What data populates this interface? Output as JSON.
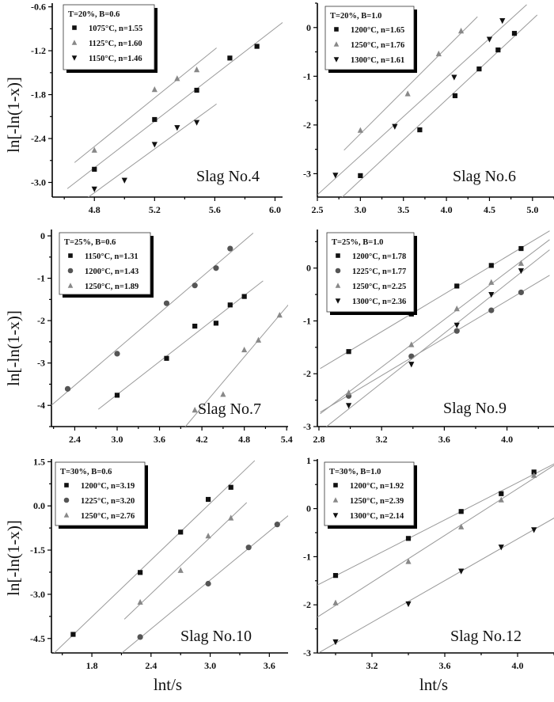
{
  "chart_data": [
    {
      "type": "scatter",
      "title": "Slag No.4",
      "legend_title": "T=20%,  B=0.6",
      "ylabel": "ln[-ln(1-x)]",
      "xlabel": "",
      "xlim": [
        4.52,
        6.05
      ],
      "ylim": [
        -3.2,
        -0.55
      ],
      "xticks": [
        "4.8",
        "5.2",
        "5.6",
        "6.0"
      ],
      "yticks": [
        "-0.6",
        "-1.2",
        "-1.8",
        "-2.4",
        "-3.0"
      ],
      "legend_position": "top-left",
      "series": [
        {
          "name": "1075°C, n=1.55",
          "marker": "square",
          "x": [
            4.8,
            5.2,
            5.48,
            5.7,
            5.88
          ],
          "y": [
            -2.82,
            -2.14,
            -1.74,
            -1.3,
            -1.14
          ]
        },
        {
          "name": "1125°C, n=1.60",
          "marker": "triangle",
          "x": [
            4.8,
            5.2,
            5.35,
            5.48
          ],
          "y": [
            -2.56,
            -1.73,
            -1.58,
            -1.46
          ]
        },
        {
          "name": "1150°C, n=1.46",
          "marker": "triangle-down",
          "x": [
            4.8,
            5.0,
            5.2,
            5.35,
            5.48
          ],
          "y": [
            -3.09,
            -2.97,
            -2.48,
            -2.25,
            -2.18
          ]
        }
      ]
    },
    {
      "type": "scatter",
      "title": "Slag No.6",
      "legend_title": "T=20%,  B=1.0",
      "ylabel": "",
      "xlabel": "",
      "xlim": [
        2.5,
        5.25
      ],
      "ylim": [
        -3.48,
        0.5
      ],
      "xticks": [
        "2.5",
        "3.0",
        "3.5",
        "4.0",
        "4.5",
        "5.0"
      ],
      "yticks": [
        "0",
        "-1",
        "-2",
        "-3"
      ],
      "legend_position": "top-left",
      "series": [
        {
          "name": "1200°C, n=1.65",
          "marker": "square",
          "x": [
            3.0,
            3.69,
            4.1,
            4.38,
            4.6,
            4.79
          ],
          "y": [
            -3.04,
            -2.1,
            -1.4,
            -0.85,
            -0.46,
            -0.12
          ]
        },
        {
          "name": "1250°C, n=1.76",
          "marker": "triangle",
          "x": [
            3.0,
            3.55,
            3.91,
            4.17
          ],
          "y": [
            -2.11,
            -1.36,
            -0.54,
            -0.07
          ]
        },
        {
          "name": "1300°C, n=1.61",
          "marker": "triangle-down",
          "x": [
            2.71,
            3.4,
            4.09,
            4.5,
            4.65
          ],
          "y": [
            -3.03,
            -2.03,
            -1.02,
            -0.24,
            0.14
          ]
        }
      ]
    },
    {
      "type": "scatter",
      "title": "Slag No.7",
      "legend_title": "T=25%, B=0.6",
      "ylabel": "ln[-ln(1-x)]",
      "xlabel": "",
      "xlim": [
        2.07,
        5.42
      ],
      "ylim": [
        -4.5,
        0.15
      ],
      "xticks": [
        "2.4",
        "3.0",
        "3.6",
        "4.2",
        "4.8",
        "5.4"
      ],
      "yticks": [
        "0",
        "-1",
        "-2",
        "-3",
        "-4"
      ],
      "legend_position": "top-left",
      "series": [
        {
          "name": "1150°C, n=1.31",
          "marker": "square",
          "x": [
            3.0,
            3.7,
            4.1,
            4.4,
            4.6,
            4.8
          ],
          "y": [
            -3.76,
            -2.89,
            -2.13,
            -2.06,
            -1.63,
            -1.43
          ]
        },
        {
          "name": "1200°C, n=1.43",
          "marker": "circle",
          "x": [
            2.3,
            3.0,
            3.7,
            4.1,
            4.4,
            4.6
          ],
          "y": [
            -3.61,
            -2.78,
            -1.59,
            -1.17,
            -0.76,
            -0.3
          ]
        },
        {
          "name": "1250°C, n=1.89",
          "marker": "triangle",
          "x": [
            4.1,
            4.5,
            4.8,
            5.0,
            5.3
          ],
          "y": [
            -4.11,
            -3.74,
            -2.69,
            -2.46,
            -1.87
          ]
        }
      ]
    },
    {
      "type": "scatter",
      "title": "Slag No.9",
      "legend_title": "T=25%, B=1.0",
      "ylabel": "",
      "xlabel": "",
      "xlim": [
        2.79,
        4.3
      ],
      "ylim": [
        -3.0,
        0.73
      ],
      "xticks": [
        "2.8",
        "3.2",
        "3.6",
        "4.0"
      ],
      "yticks": [
        "0",
        "-1",
        "-2",
        "-3"
      ],
      "legend_position": "top-left",
      "series": [
        {
          "name": "1200°C, n=1.78",
          "marker": "square",
          "x": [
            2.99,
            3.39,
            3.68,
            3.9,
            4.09
          ],
          "y": [
            -1.58,
            -0.87,
            -0.34,
            0.05,
            0.37
          ]
        },
        {
          "name": "1225°C, n=1.77",
          "marker": "circle",
          "x": [
            2.99,
            3.39,
            3.68,
            3.9,
            4.09
          ],
          "y": [
            -2.42,
            -1.67,
            -1.19,
            -0.8,
            -0.46
          ]
        },
        {
          "name": "1250°C, n=2.25",
          "marker": "triangle",
          "x": [
            2.99,
            3.39,
            3.68,
            3.9,
            4.09
          ],
          "y": [
            -2.36,
            -1.45,
            -0.77,
            -0.27,
            0.09
          ]
        },
        {
          "name": "1300°C, n=2.36",
          "marker": "triangle-down",
          "x": [
            2.99,
            3.39,
            3.68,
            3.9,
            4.09
          ],
          "y": [
            -2.6,
            -1.82,
            -1.08,
            -0.5,
            -0.05
          ]
        }
      ]
    },
    {
      "type": "scatter",
      "title": "Slag No.10",
      "legend_title": "T=30%, B=0.6",
      "ylabel": "ln[-ln(1-x)]",
      "xlabel": "lnt/s",
      "xlim": [
        1.39,
        3.79
      ],
      "ylim": [
        -4.99,
        1.59
      ],
      "xticks": [
        "1.8",
        "2.4",
        "3.0",
        "3.6"
      ],
      "yticks": [
        "1.5",
        "0.0",
        "-1.5",
        "-3.0",
        "-4.5"
      ],
      "legend_position": "top-left",
      "series": [
        {
          "name": "1200°C, n=3.19",
          "marker": "square",
          "x": [
            1.61,
            2.29,
            2.7,
            2.98,
            3.21
          ],
          "y": [
            -4.36,
            -2.26,
            -0.89,
            0.22,
            0.63
          ]
        },
        {
          "name": "1225°C, n=3.20",
          "marker": "circle",
          "x": [
            2.29,
            2.98,
            3.39,
            3.68
          ],
          "y": [
            -4.45,
            -2.64,
            -1.41,
            -0.63
          ]
        },
        {
          "name": "1250°C, n=2.76",
          "marker": "triangle",
          "x": [
            2.29,
            2.7,
            2.98,
            3.21
          ],
          "y": [
            -3.27,
            -2.19,
            -1.02,
            -0.41
          ]
        }
      ]
    },
    {
      "type": "scatter",
      "title": "Slag No.12",
      "legend_title": "T=30%,  B=1.0",
      "ylabel": "",
      "xlabel": "lnt/s",
      "xlim": [
        2.9,
        4.2
      ],
      "ylim": [
        -3.0,
        1.03
      ],
      "xticks": [
        "3.2",
        "3.6",
        "4.0"
      ],
      "yticks": [
        "1",
        "0",
        "-1",
        "-2",
        "-3"
      ],
      "legend_position": "top-left",
      "series": [
        {
          "name": "1200°C, n=1.92",
          "marker": "square",
          "x": [
            3.0,
            3.4,
            3.69,
            3.91,
            4.09
          ],
          "y": [
            -1.39,
            -0.62,
            -0.06,
            0.31,
            0.76
          ]
        },
        {
          "name": "1250°C, n=2.39",
          "marker": "triangle",
          "x": [
            3.0,
            3.4,
            3.69,
            3.91,
            4.09
          ],
          "y": [
            -1.96,
            -1.1,
            -0.38,
            0.18,
            0.69
          ]
        },
        {
          "name": "1300°C, n=2.14",
          "marker": "triangle-down",
          "x": [
            3.0,
            3.4,
            3.69,
            3.91,
            4.09
          ],
          "y": [
            -2.77,
            -1.98,
            -1.3,
            -0.8,
            -0.44
          ]
        }
      ]
    }
  ],
  "colors": {
    "square": "#111111",
    "circle": "#555555",
    "triangle": "#888888",
    "triangle-down": "#111111",
    "fit_line": "#9a9a9a"
  }
}
